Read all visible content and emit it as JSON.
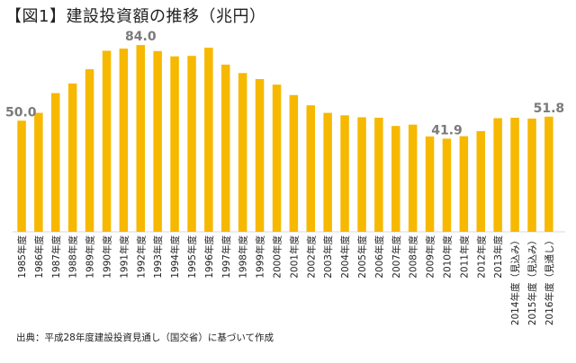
{
  "header": {
    "title": "【図1】建設投資額の推移（兆円）"
  },
  "footer": {
    "source": "出典：平成28年度建設投資見通し（国交省）に基づいて作成"
  },
  "colors": {
    "bar": "#F7B800",
    "label": "#7a7a7a"
  },
  "chart_data": {
    "type": "bar",
    "title": "【図1】建設投資額の推移（兆円）",
    "xlabel": "",
    "ylabel": "",
    "ylim": [
      0,
      86
    ],
    "grid": false,
    "legend": "none",
    "categories": [
      "1985年度",
      "1986年度",
      "1987年度",
      "1988年度",
      "1989年度",
      "1990年度",
      "1991年度",
      "1992年度",
      "1993年度",
      "1994年度",
      "1995年度",
      "1996年度",
      "1997年度",
      "1998年度",
      "1999年度",
      "2000年度",
      "2001年度",
      "2002年度",
      "2003年度",
      "2004年度",
      "2005年度",
      "2006年度",
      "2007年度",
      "2008年度",
      "2009年度",
      "2010年度",
      "2011年度",
      "2012年度",
      "2013年度",
      "2014年度（見込み）",
      "2015年度（見込み）",
      "2016年度（見通し）"
    ],
    "series": [
      {
        "values": [
          50.0,
          53.5,
          62.4,
          66.7,
          73.1,
          81.4,
          82.4,
          84.0,
          81.3,
          78.9,
          79.1,
          82.8,
          75.2,
          71.4,
          68.7,
          66.2,
          61.5,
          56.9,
          53.5,
          52.4,
          51.5,
          51.3,
          47.6,
          48.2,
          42.9,
          41.9,
          43.0,
          45.3,
          51.1,
          51.3,
          50.9,
          51.8
        ]
      }
    ],
    "data_labels": [
      {
        "index": 0,
        "text": "50.0"
      },
      {
        "index": 7,
        "text": "84.0"
      },
      {
        "index": 25,
        "text": "41.9"
      },
      {
        "index": 31,
        "text": "51.8"
      }
    ]
  }
}
